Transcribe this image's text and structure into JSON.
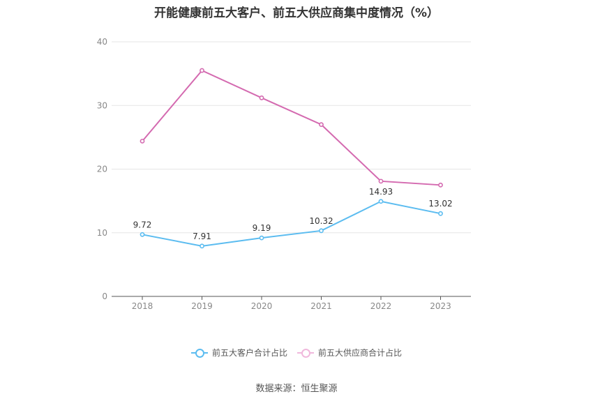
{
  "title": "开能健康前五大客户、前五大供应商集中度情况（%）",
  "source": "数据来源：恒生聚源",
  "colors": {
    "customers": "#5bbcf0",
    "suppliers": "#d46ab0",
    "grid": "#e6e6e6",
    "axis": "#555555",
    "tick": "#888888",
    "label": "#333333"
  },
  "chart_data": {
    "type": "line",
    "title": "开能健康前五大客户、前五大供应商集中度情况（%）",
    "categories": [
      "2018",
      "2019",
      "2020",
      "2021",
      "2022",
      "2023"
    ],
    "ylim": [
      0,
      40
    ],
    "yticks": [
      0,
      10,
      20,
      30,
      40
    ],
    "grid": true,
    "legend_position": "bottom",
    "series": [
      {
        "name": "前五大客户合计占比",
        "values": [
          9.72,
          7.91,
          9.19,
          10.32,
          14.93,
          13.02
        ],
        "labels": [
          "9.72",
          "7.91",
          "9.19",
          "10.32",
          "14.93",
          "13.02"
        ],
        "show_labels": true,
        "color": "#5bbcf0"
      },
      {
        "name": "前五大供应商合计占比",
        "values": [
          24.4,
          35.5,
          31.2,
          27.0,
          18.1,
          17.5
        ],
        "show_labels": false,
        "color": "#d46ab0"
      }
    ]
  }
}
